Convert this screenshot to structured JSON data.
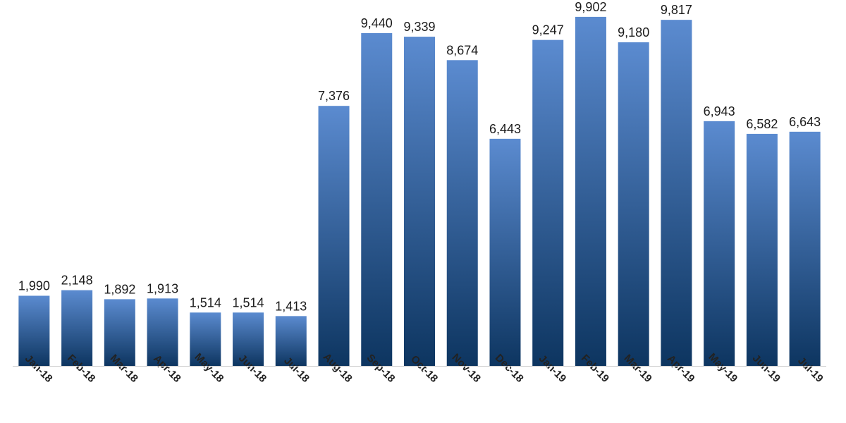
{
  "chart_data": {
    "type": "bar",
    "title": "",
    "xlabel": "",
    "ylabel": "",
    "categories": [
      "Jan-18",
      "Feb-18",
      "Mar-18",
      "Apr-18",
      "May-18",
      "Jun-18",
      "Jul-18",
      "Aug-18",
      "Sep-18",
      "Oct-18",
      "Nov-18",
      "Dec-18",
      "Jan-19",
      "Feb-19",
      "Mar-19",
      "Apr-19",
      "May-19",
      "Jun-19",
      "Jul-19"
    ],
    "values": [
      1990,
      2148,
      1892,
      1913,
      1514,
      1514,
      1413,
      7376,
      9440,
      9339,
      8674,
      6443,
      9247,
      9902,
      9180,
      9817,
      6943,
      6582,
      6643
    ],
    "value_labels": [
      "1,990",
      "2,148",
      "1,892",
      "1,913",
      "1,514",
      "1,514",
      "1,413",
      "7,376",
      "9,440",
      "9,339",
      "8,674",
      "6,443",
      "9,247",
      "9,902",
      "9,180",
      "9,817",
      "6,943",
      "6,582",
      "6,643"
    ],
    "ylim": [
      0,
      10000
    ],
    "grid": false,
    "legend": "none",
    "colors": {
      "bar_top": "#5b8bd0",
      "bar_bottom": "#0d3560",
      "baseline": "#cccccc"
    }
  }
}
